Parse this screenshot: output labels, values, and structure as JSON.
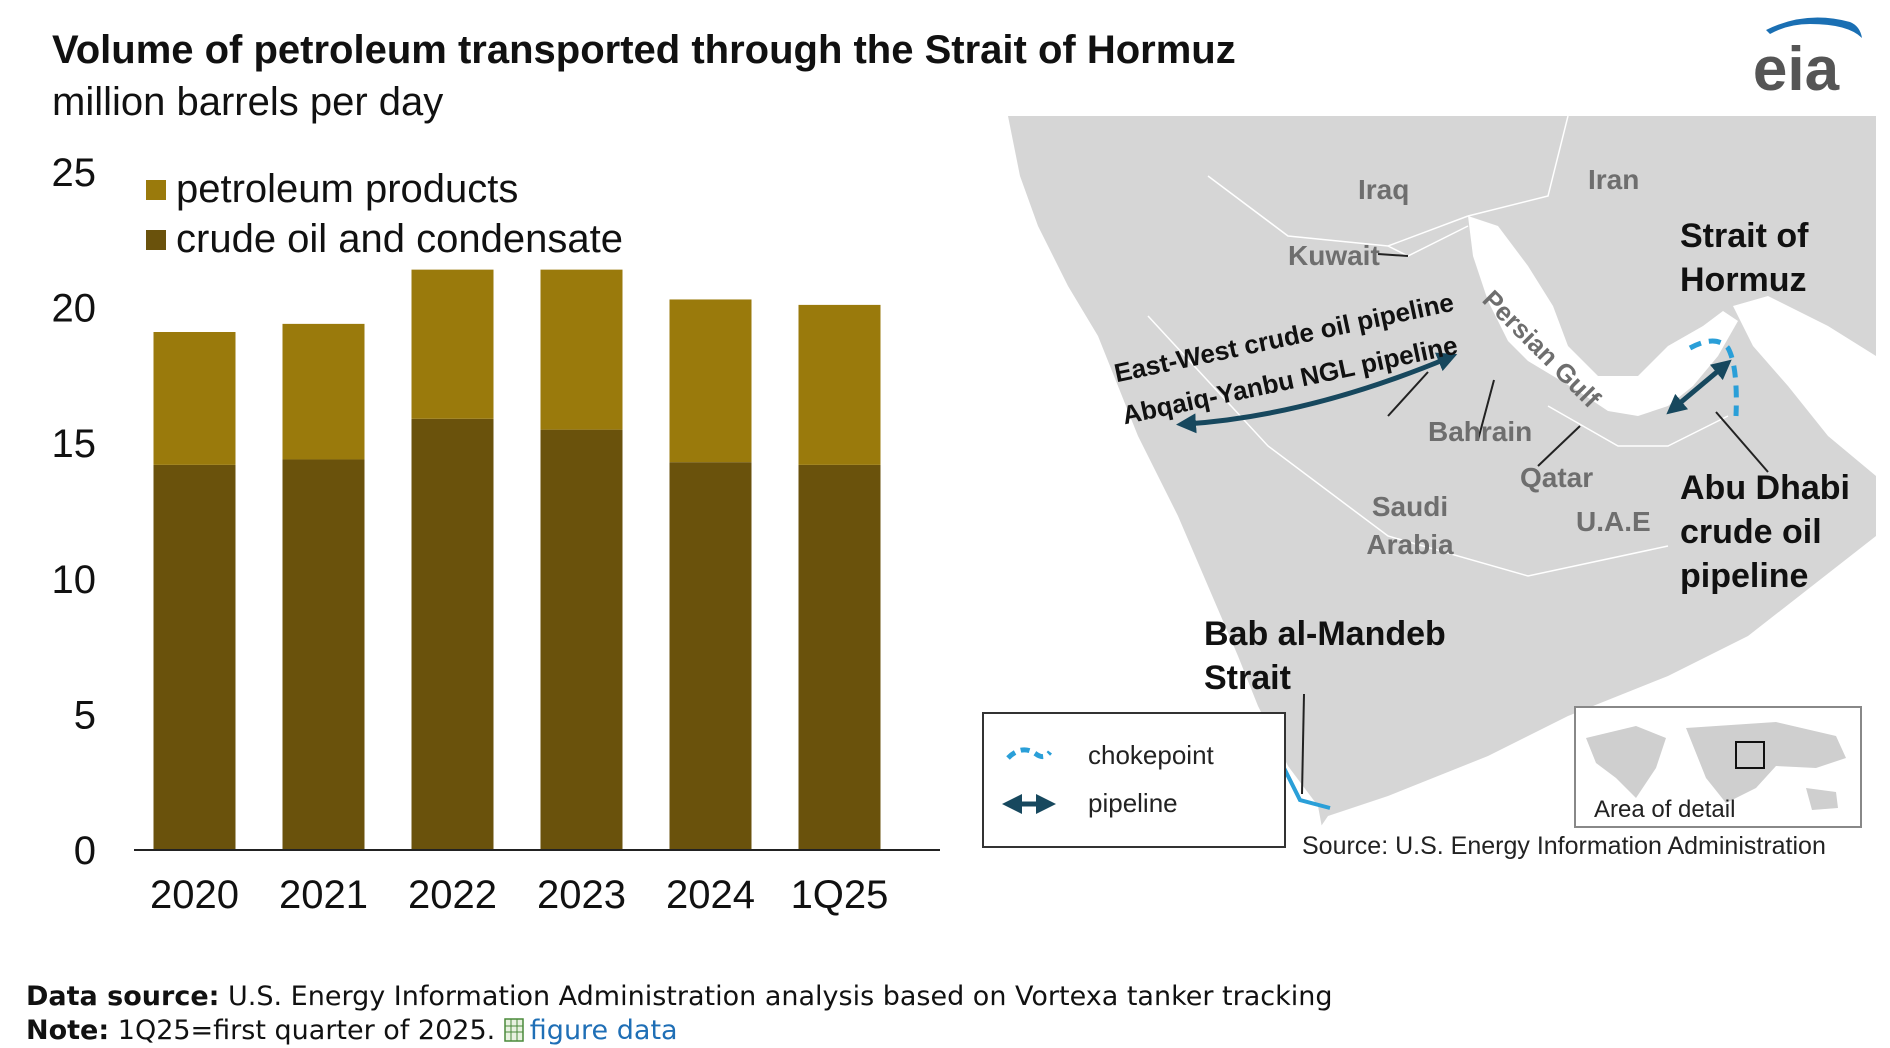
{
  "header": {
    "title": "Volume of petroleum transported through the Strait of Hormuz",
    "subtitle": "million barrels per day",
    "logo_text": "eia"
  },
  "colors": {
    "products": "#9a7a0c",
    "crude": "#6a520c",
    "map_land": "#d6d6d6",
    "map_water": "#ffffff",
    "chokepoint": "#2a9fd8",
    "pipeline": "#17485e"
  },
  "chart_data": {
    "type": "bar",
    "stacked": true,
    "categories": [
      "2020",
      "2021",
      "2022",
      "2023",
      "2024",
      "1Q25"
    ],
    "series": [
      {
        "name": "crude oil and condensate",
        "color": "#6a520c",
        "values": [
          14.2,
          14.4,
          15.9,
          15.5,
          14.3,
          14.2
        ]
      },
      {
        "name": "petroleum products",
        "color": "#9a7a0c",
        "values": [
          4.9,
          5.0,
          5.5,
          5.9,
          6.0,
          5.9
        ]
      }
    ],
    "legend_order": [
      "petroleum products",
      "crude oil and condensate"
    ],
    "legend_position": "top-left",
    "yticks": [
      "0",
      "5",
      "10",
      "15",
      "20",
      "25"
    ],
    "ylim": [
      0,
      25
    ],
    "grid": false
  },
  "map": {
    "countries": [
      "Iraq",
      "Iran",
      "Kuwait",
      "Bahrain",
      "Qatar",
      "U.A.E",
      "Saudi Arabia"
    ],
    "water_label": "Persian Gulf",
    "strait_hormuz": "Strait of Hormuz",
    "bab_al_mandeb": "Bab al-Mandeb Strait",
    "east_west_pipeline": "East-West crude oil pipeline",
    "abqaiq_yanbu": "Abqaiq-Yanbu NGL pipeline",
    "abu_dhabi_pipeline": "Abu Dhabi crude oil pipeline",
    "legend": {
      "chokepoint": "chokepoint",
      "pipeline": "pipeline"
    },
    "inset_label": "Area of detail",
    "source": "Source: U.S. Energy Information Administration"
  },
  "footer": {
    "data_source_label": "Data source:",
    "data_source_text": "U.S. Energy Information Administration analysis based on Vortexa tanker tracking",
    "note_label": "Note:",
    "note_text": "1Q25=first quarter of 2025.",
    "figure_data_link": "figure data",
    "figure_data_icon": "spreadsheet-icon"
  }
}
